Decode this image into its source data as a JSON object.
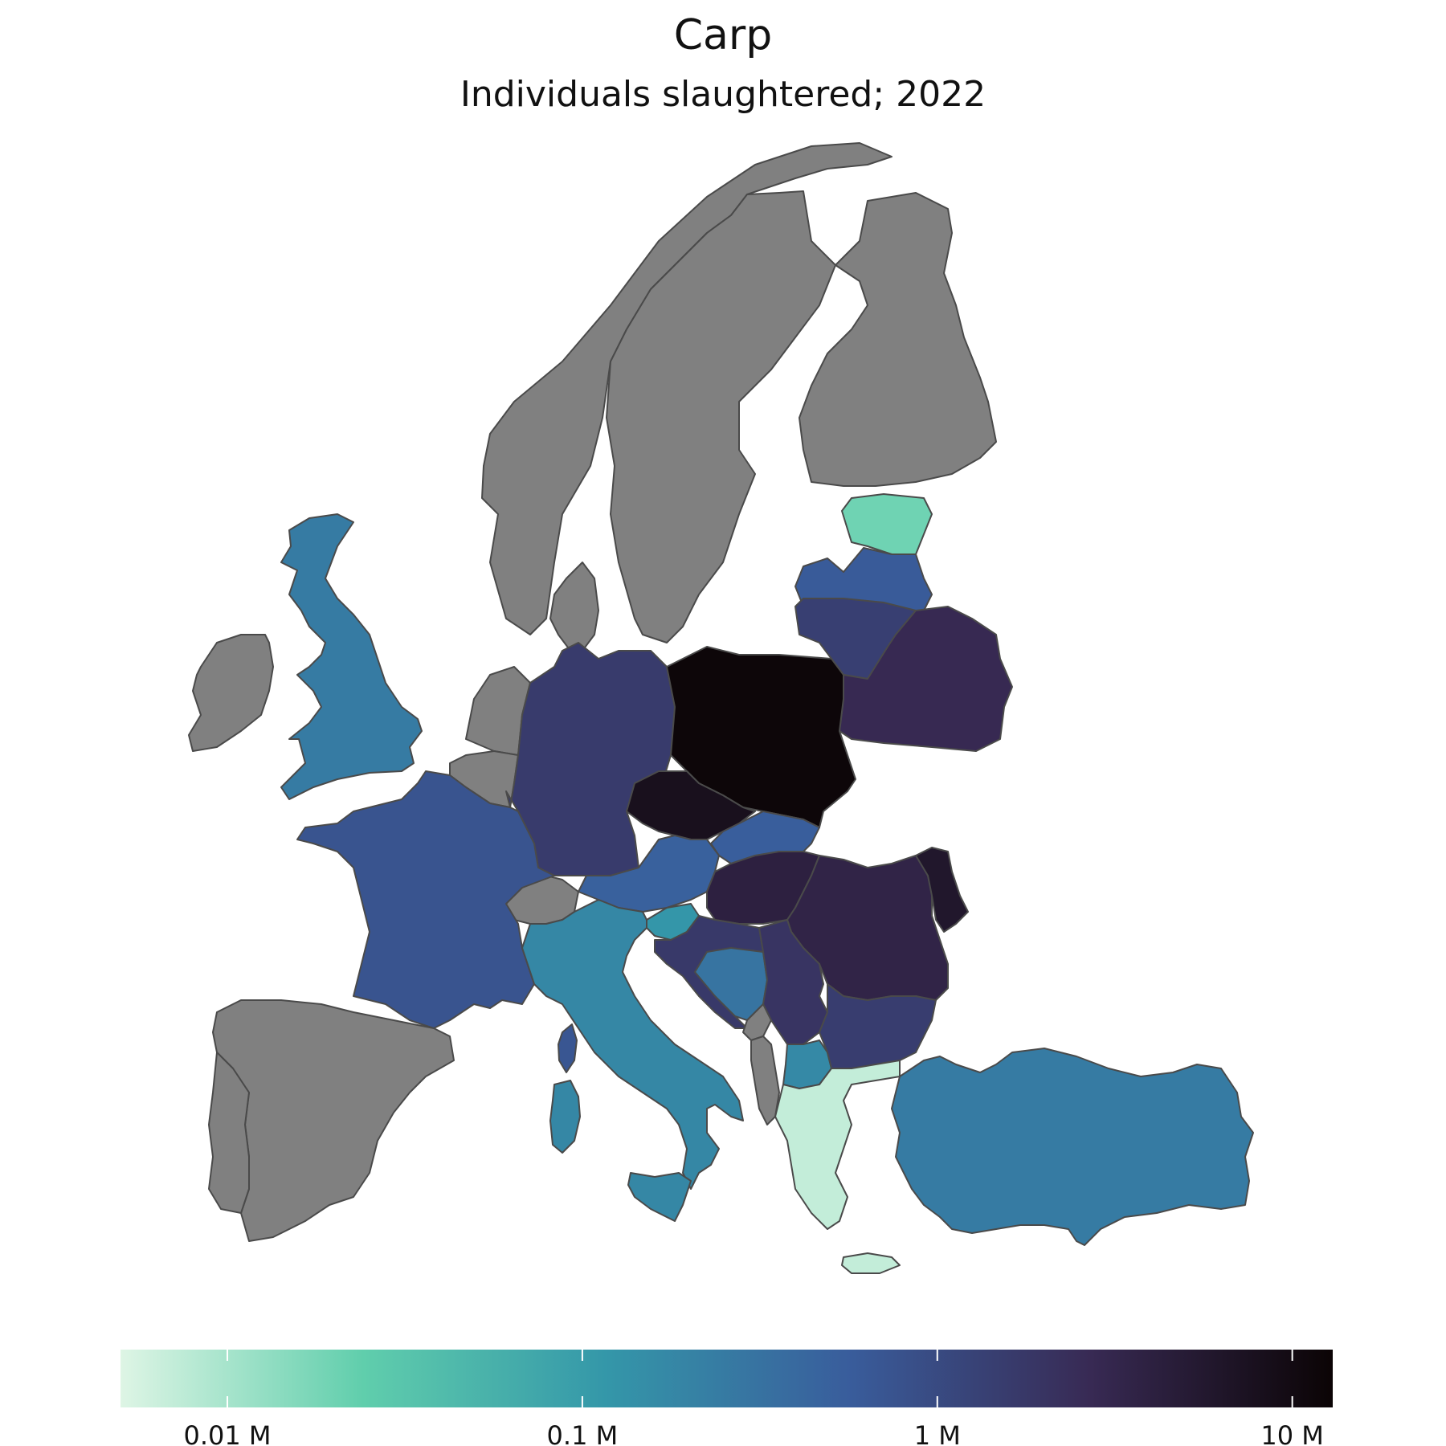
{
  "title": "Carp",
  "subtitle": "Individuals slaughtered; 2022",
  "colors": {
    "no_data": "#808080",
    "border": "#4a4a4a",
    "scale": [
      "#def5e5",
      "#60ceac",
      "#3497a9",
      "#395d9c",
      "#382a54",
      "#0b0405"
    ]
  },
  "colorbar": {
    "scale": "log",
    "min": 0.005,
    "max": 13,
    "ticks": [
      {
        "value": 0.01,
        "label": "0.01 M"
      },
      {
        "value": 0.1,
        "label": "0.1 M"
      },
      {
        "value": 1,
        "label": "1 M"
      },
      {
        "value": 10,
        "label": "10 M"
      }
    ]
  },
  "regions": [
    {
      "id": "norway",
      "value": null
    },
    {
      "id": "sweden",
      "value": null
    },
    {
      "id": "finland",
      "value": null
    },
    {
      "id": "estonia",
      "value": 0.02
    },
    {
      "id": "latvia",
      "value": 0.6
    },
    {
      "id": "lithuania",
      "value": 1.4
    },
    {
      "id": "belarus",
      "value": 2.8
    },
    {
      "id": "united-kingdom",
      "value": 0.25
    },
    {
      "id": "ireland",
      "value": null
    },
    {
      "id": "netherlands",
      "value": null
    },
    {
      "id": "belgium",
      "value": null
    },
    {
      "id": "germany",
      "value": 1.6
    },
    {
      "id": "denmark",
      "value": null
    },
    {
      "id": "poland",
      "value": 12
    },
    {
      "id": "czechia",
      "value": 8
    },
    {
      "id": "slovakia",
      "value": 0.55
    },
    {
      "id": "austria",
      "value": 0.5
    },
    {
      "id": "switzerland",
      "value": null
    },
    {
      "id": "france",
      "value": 0.75
    },
    {
      "id": "hungary",
      "value": 4
    },
    {
      "id": "romania",
      "value": 3.5
    },
    {
      "id": "moldova",
      "value": 6
    },
    {
      "id": "slovenia",
      "value": 0.12
    },
    {
      "id": "croatia",
      "value": 1.7
    },
    {
      "id": "bosnia",
      "value": 0.3
    },
    {
      "id": "serbia",
      "value": 2
    },
    {
      "id": "montenegro",
      "value": null
    },
    {
      "id": "albania",
      "value": null
    },
    {
      "id": "north-macedonia",
      "value": 0.17
    },
    {
      "id": "bulgaria",
      "value": 1.5
    },
    {
      "id": "greece",
      "value": 0.007
    },
    {
      "id": "turkey",
      "value": 0.25
    },
    {
      "id": "italy",
      "value": 0.18
    },
    {
      "id": "spain",
      "value": null
    },
    {
      "id": "portugal",
      "value": null
    },
    {
      "id": "corsica",
      "value": 0.7
    },
    {
      "id": "sardinia",
      "value": 0.18
    },
    {
      "id": "sicily",
      "value": 0.18
    },
    {
      "id": "crete",
      "value": 0.007
    }
  ]
}
